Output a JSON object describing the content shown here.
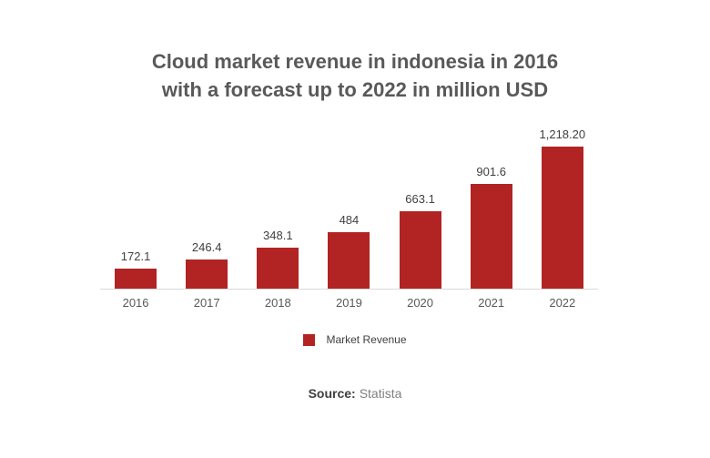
{
  "title": {
    "line1": "Cloud market revenue in indonesia in 2016",
    "line2": "with a forecast up to 2022 in million USD"
  },
  "chart_data": {
    "type": "bar",
    "title": "Cloud market revenue in indonesia in 2016 with a forecast up to 2022 in million USD",
    "categories": [
      "2016",
      "2017",
      "2018",
      "2019",
      "2020",
      "2021",
      "2022"
    ],
    "series": [
      {
        "name": "Market Revenue",
        "values": [
          172.1,
          246.4,
          348.1,
          484,
          663.1,
          901.6,
          1218.2
        ],
        "value_labels": [
          "172.1",
          "246.4",
          "348.1",
          "484",
          "663.1",
          "901.6",
          "1,218.20"
        ]
      }
    ],
    "xlabel": "",
    "ylabel": "",
    "ylim": [
      0,
      1250
    ],
    "grid": false,
    "y_axis_visible": false,
    "legend_position": "bottom",
    "data_labels": true
  },
  "legend": {
    "label": "Market Revenue"
  },
  "source": {
    "label": "Source:",
    "value": "Statista"
  },
  "colors": {
    "bar": "#b22424",
    "axis_line": "#d9d9d9",
    "title_text": "#595959",
    "value_label_text": "#404040",
    "tick_label_text": "#595959",
    "legend_text": "#404040",
    "source_label_text": "#404040",
    "source_value_text": "#808080",
    "background": "#ffffff"
  }
}
